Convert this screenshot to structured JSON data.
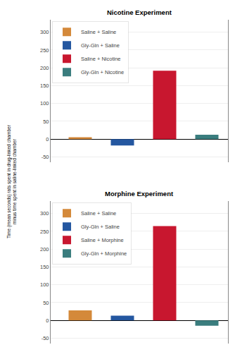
{
  "chart_data": [
    {
      "type": "bar",
      "title": "Nicotine Experiment",
      "ylabel": "Time (mean seconds) rats spent in drug-linked chamber\nminus time spent in saline-linked chamber",
      "categories": [
        "Saline + Saline",
        "Gly-Gln + Saline",
        "Saline + Nicotine",
        "Gly-Gln + Nicotine"
      ],
      "values": [
        5,
        -18,
        192,
        12
      ],
      "colors": [
        "#d4893a",
        "#2457a0",
        "#c8172f",
        "#3a7d7e"
      ],
      "ylim": [
        -65,
        335
      ],
      "yticks": [
        -50,
        0,
        50,
        100,
        150,
        200,
        250,
        300
      ],
      "grid": true,
      "legend": "upper left",
      "tick_labels": "y"
    },
    {
      "type": "bar",
      "title": "Morphine Experiment",
      "categories": [
        "Saline + Saline",
        "Gly-Gln + Saline",
        "Saline + Morphine",
        "Gly-Gln + Morphine"
      ],
      "values": [
        28,
        13,
        265,
        -15
      ],
      "colors": [
        "#d4893a",
        "#2457a0",
        "#c8172f",
        "#3a7d7e"
      ],
      "ylim": [
        -65,
        335
      ],
      "yticks": [
        -50,
        0,
        50,
        100,
        150,
        200,
        250,
        300
      ],
      "grid": true,
      "legend": "upper left",
      "tick_labels": "y"
    }
  ]
}
